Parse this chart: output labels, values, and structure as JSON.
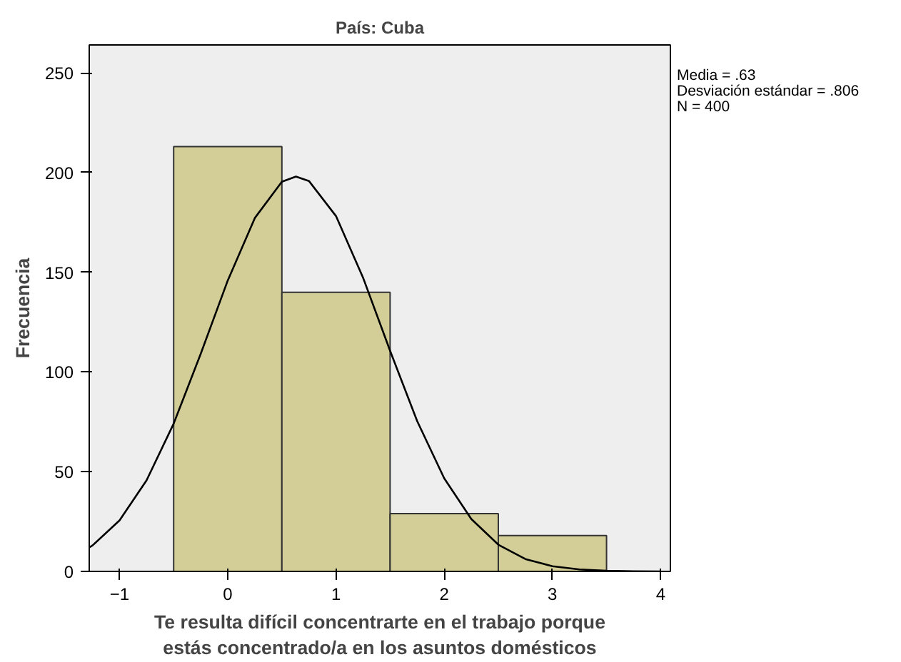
{
  "chart_data": {
    "type": "histogram",
    "title": "País: Cuba",
    "xlabel": "Te resulta difícil concentrarte en el trabajo porque\nestás concentrado/a en los asuntos domésticos",
    "ylabel": "Frecuencia",
    "bins": [
      -0.5,
      0.5,
      1.5,
      2.5,
      3.5
    ],
    "values": [
      213,
      140,
      29,
      18
    ],
    "color": "#d3ce98",
    "series": [
      {
        "type": "line",
        "color": "#000000",
        "x": [
          -1.28,
          -1.25,
          -1.0,
          -0.75,
          -0.5,
          -0.25,
          0,
          0.25,
          0.5,
          0.63,
          0.75,
          1.0,
          1.25,
          1.5,
          1.75,
          2.0,
          2.25,
          2.5,
          2.75,
          3.0,
          3.25,
          3.5,
          3.75,
          4.0
        ],
        "values": [
          12,
          13,
          25.6,
          45.7,
          74.1,
          109.1,
          145.9,
          177.2,
          195.4,
          198,
          195.8,
          178.2,
          147.3,
          110.6,
          75.4,
          46.7,
          26.3,
          13.4,
          6.2,
          2.6,
          1.0,
          0.3,
          0.1,
          0
        ]
      }
    ],
    "xlim": [
      -1.28,
      4.09
    ],
    "ylim": [
      0,
      264
    ],
    "xticks": [
      -1,
      0,
      1,
      2,
      3,
      4
    ],
    "yticks": [
      0,
      50,
      100,
      150,
      200,
      250
    ],
    "grid": false,
    "annotations": [
      "Media = .63",
      "Desviación estándar = .806",
      "N = 400"
    ]
  }
}
